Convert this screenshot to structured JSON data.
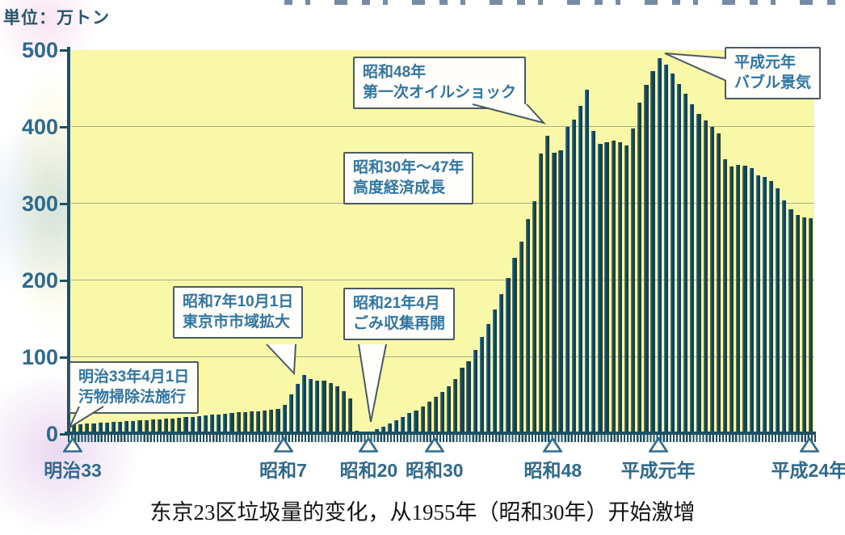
{
  "page": {
    "unit_label": "単位：万トン",
    "caption": "东京23区垃圾量的变化，从1955年（昭和30年）开始激增"
  },
  "colors": {
    "bar": "#16424f",
    "plot_background": "#f8f8a8",
    "axis": "#1d5060",
    "tick_label": "#2d6a8d",
    "annotation_text": "#3076a3",
    "caption_text": "#141414"
  },
  "chart_data": {
    "type": "bar",
    "title": "",
    "ylabel": "単位：万トン",
    "ylim": [
      0,
      500
    ],
    "yticks": [
      0,
      100,
      200,
      300,
      400,
      500
    ],
    "grid": "horizontal",
    "x_start_year": 1900,
    "x_end_year": 2012,
    "x_axis_markers": [
      {
        "label": "明治33",
        "year": 1900
      },
      {
        "label": "昭和7",
        "year": 1932
      },
      {
        "label": "昭和20",
        "year": 1945
      },
      {
        "label": "昭和30",
        "year": 1955
      },
      {
        "label": "昭和48",
        "year": 1973
      },
      {
        "label": "平成元年",
        "year": 1989
      },
      {
        "label": "平成24年",
        "year": 2012
      }
    ],
    "values": [
      13,
      13,
      14,
      14,
      15,
      15,
      16,
      16,
      17,
      17,
      18,
      18,
      19,
      19,
      20,
      20,
      21,
      22,
      22,
      23,
      24,
      25,
      25,
      26,
      27,
      28,
      28,
      29,
      30,
      31,
      32,
      33,
      38,
      52,
      65,
      77,
      72,
      70,
      69,
      66,
      62,
      56,
      46,
      4,
      2,
      2,
      6,
      10,
      14,
      18,
      22,
      27,
      31,
      36,
      42,
      48,
      55,
      62,
      72,
      86,
      95,
      110,
      126,
      143,
      162,
      182,
      203,
      229,
      251,
      280,
      303,
      365,
      388,
      366,
      370,
      400,
      410,
      427,
      448,
      395,
      378,
      380,
      382,
      380,
      376,
      398,
      432,
      455,
      473,
      490,
      481,
      470,
      456,
      443,
      430,
      417,
      408,
      400,
      392,
      358,
      348,
      351,
      350,
      346,
      337,
      335,
      330,
      320,
      304,
      293,
      285,
      282,
      281
    ],
    "annotations": [
      {
        "id": "meiji33",
        "line1": "明治33年4月1日",
        "line2": "汚物掃除法施行"
      },
      {
        "id": "showa7",
        "line1": "昭和7年10月1日",
        "line2": "東京市市域拡大"
      },
      {
        "id": "showa21",
        "line1": "昭和21年4月",
        "line2": "ごみ収集再開"
      },
      {
        "id": "showa30_47",
        "line1": "昭和30年～47年",
        "line2": "高度経済成長"
      },
      {
        "id": "showa48",
        "line1": "昭和48年",
        "line2": "第一次オイルショック"
      },
      {
        "id": "heisei1",
        "line1": "平成元年",
        "line2": "バブル景気"
      }
    ],
    "legend": "none"
  }
}
